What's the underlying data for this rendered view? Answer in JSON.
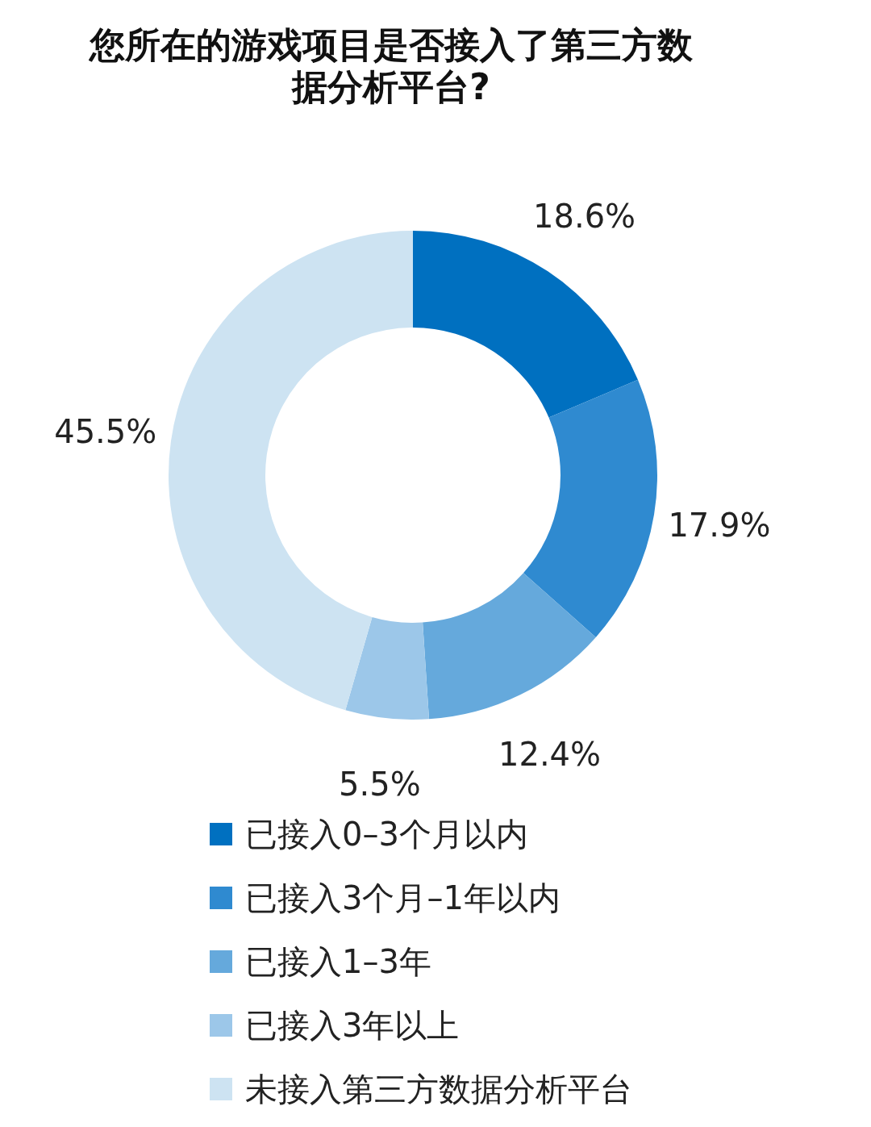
{
  "chart_data": {
    "type": "donut",
    "title": "您所在的游戏项目是否接入了第三方数据分析平台?",
    "categories": [
      "已接入0–3个月以内",
      "已接入3个月–1年以内",
      "已接入1–3年",
      "已接入3年以上",
      "未接入第三方数据分析平台"
    ],
    "values": [
      18.6,
      17.9,
      12.4,
      5.5,
      45.5
    ],
    "value_labels": [
      "18.6%",
      "17.9%",
      "12.4%",
      "5.5%",
      "45.5%"
    ],
    "colors": [
      "#0070c0",
      "#2f8ad0",
      "#65a9dc",
      "#9cc7e9",
      "#cde3f2"
    ],
    "legend": "bottom"
  }
}
